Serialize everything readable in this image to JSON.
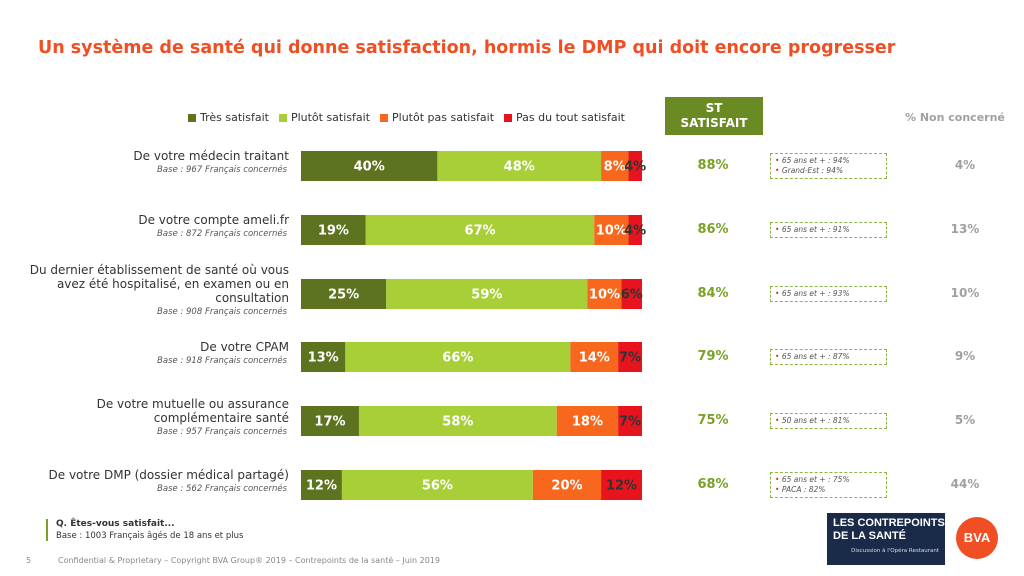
{
  "title": "Un système de santé qui donne satisfaction, hormis le DMP qui doit encore progresser",
  "colors": {
    "tres": "#5e7320",
    "plutot": "#a9cf38",
    "plutot_pas": "#f7671d",
    "pas_du_tout": "#e8141d",
    "title": "#f04e23",
    "st_header_bg": "#6a8a23"
  },
  "st_header": "ST\nSATISFAIT",
  "nc_header": "% Non concerné",
  "chart_data": {
    "type": "bar",
    "orientation": "horizontal",
    "stacked": true,
    "legend": {
      "placement": "top",
      "entries": [
        "Très satisfait",
        "Plutôt satisfait",
        "Plutôt pas satisfait",
        "Pas du tout satisfait"
      ]
    },
    "categories": [
      "De votre médecin traitant",
      "De votre compte ameli.fr",
      "Du dernier établissement de santé où vous avez été hospitalisé, en examen ou en consultation",
      "De votre CPAM",
      "De votre mutuelle ou assurance complémentaire santé",
      "De votre DMP (dossier médical partagé)"
    ],
    "series": [
      {
        "name": "Très satisfait",
        "values": [
          40,
          19,
          25,
          13,
          17,
          12
        ]
      },
      {
        "name": "Plutôt satisfait",
        "values": [
          48,
          67,
          59,
          66,
          58,
          56
        ]
      },
      {
        "name": "Plutôt pas satisfait",
        "values": [
          8,
          10,
          10,
          14,
          18,
          20
        ]
      },
      {
        "name": "Pas du tout satisfait",
        "values": [
          4,
          4,
          6,
          7,
          7,
          12
        ]
      }
    ],
    "value_labels": [
      [
        "40%",
        "48%",
        "8%",
        "4%"
      ],
      [
        "19%",
        "67%",
        "10%",
        "4%"
      ],
      [
        "25%",
        "59%",
        "10%",
        "6%"
      ],
      [
        "13%",
        "66%",
        "14%",
        "7%"
      ],
      [
        "17%",
        "58%",
        "18%",
        "7%"
      ],
      [
        "12%",
        "56%",
        "20%",
        "12%"
      ]
    ],
    "xlim": [
      0,
      100
    ]
  },
  "rows": [
    {
      "label": "De votre médecin traitant",
      "base": "Base : 967 Français concernés",
      "st": "88%",
      "notes": [
        "65 ans et + : 94%",
        "Grand-Est : 94%"
      ],
      "nc": "4%"
    },
    {
      "label": "De votre compte ameli.fr",
      "base": "Base : 872 Français concernés",
      "st": "86%",
      "notes": [
        "65 ans et + : 91%"
      ],
      "nc": "13%"
    },
    {
      "label": "Du dernier établissement de santé où vous avez été hospitalisé, en examen ou en consultation",
      "base": "Base : 908 Français concernés",
      "st": "84%",
      "notes": [
        "65 ans et + : 93%"
      ],
      "nc": "10%"
    },
    {
      "label": "De votre CPAM",
      "base": "Base : 918 Français concernés",
      "st": "79%",
      "notes": [
        "65 ans et + : 87%"
      ],
      "nc": "9%"
    },
    {
      "label": "De votre mutuelle ou assurance complémentaire santé",
      "base": "Base : 957 Français concernés",
      "st": "75%",
      "notes": [
        "50 ans et + : 81%"
      ],
      "nc": "5%"
    },
    {
      "label": "De votre DMP (dossier médical partagé)",
      "base": "Base : 562 Français concernés",
      "st": "68%",
      "notes": [
        "65 ans et + : 75%",
        "PACA : 82%"
      ],
      "nc": "44%"
    }
  ],
  "question": "Q. Êtes-vous satisfait...",
  "question_base": "Base : 1003 Français âgés de 18 ans et plus",
  "footer_page": "5",
  "footer_text": "Confidential & Proprietary – Copyright BVA Group® 2019 – Contrepoints de la santé – Juin 2019",
  "logo_lcs": {
    "line1": "LES CONTREPOINTS",
    "line2": "DE LA SANTÉ",
    "line3": "Discussion à l'Opéra Restaurant"
  },
  "logo_bva": "BVA"
}
